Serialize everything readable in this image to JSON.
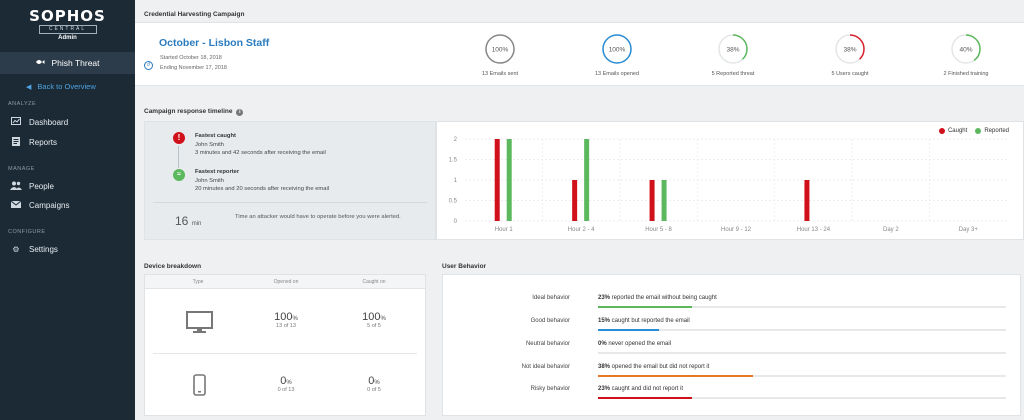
{
  "sidebar": {
    "brand": "SOPHOS",
    "brand_sub": "CENTRAL",
    "brand_role": "Admin",
    "product": "Phish Threat",
    "back_link": "Back to Overview",
    "sections": [
      {
        "label": "ANALYZE",
        "items": [
          {
            "label": "Dashboard",
            "icon": "dashboard-icon"
          },
          {
            "label": "Reports",
            "icon": "reports-icon"
          }
        ]
      },
      {
        "label": "MANAGE",
        "items": [
          {
            "label": "People",
            "icon": "people-icon"
          },
          {
            "label": "Campaigns",
            "icon": "envelope-icon"
          }
        ]
      },
      {
        "label": "CONFIGURE",
        "items": [
          {
            "label": "Settings",
            "icon": "gear-icon"
          }
        ]
      }
    ]
  },
  "campaign": {
    "section_title": "Credential Harvesting Campaign",
    "name": "October - Lisbon Staff",
    "started": "Started October 18, 2018",
    "ending": "Ending November 17, 2018",
    "stats": [
      {
        "value": "100%",
        "fraction": 1.0,
        "color": "#888888",
        "label": "13 Emails sent"
      },
      {
        "value": "100%",
        "fraction": 1.0,
        "color": "#2a8dd4",
        "label": "13 Emails opened"
      },
      {
        "value": "38%",
        "fraction": 0.38,
        "color": "#5cb85c",
        "label": "5 Reported threat"
      },
      {
        "value": "38%",
        "fraction": 0.38,
        "color": "#d9202a",
        "label": "5 Users caught"
      },
      {
        "value": "40%",
        "fraction": 0.4,
        "color": "#5cb85c",
        "label": "2 Finished training"
      }
    ]
  },
  "timeline": {
    "section_title": "Campaign response timeline",
    "fastest_caught": {
      "title": "Fastest caught",
      "name": "John Smith",
      "detail": "3 minutes and 42 seconds after receiving the email"
    },
    "fastest_reporter": {
      "title": "Fastest reporter",
      "name": "John Smith",
      "detail": "20 minutes and 20 seconds after receiving the email"
    },
    "minutes": "16",
    "minutes_unit": "min",
    "minutes_text": "Time an attacker would have to operate before you were alerted."
  },
  "chart_data": {
    "type": "bar",
    "categories": [
      "Hour 1",
      "Hour 2 - 4",
      "Hour 5 - 8",
      "Hour 9 - 12",
      "Hour 13 - 24",
      "Day 2",
      "Day 3+"
    ],
    "series": [
      {
        "name": "Caught",
        "color": "#d0111b",
        "values": [
          2,
          1,
          1,
          0,
          1,
          0,
          0
        ]
      },
      {
        "name": "Reported",
        "color": "#5cb85c",
        "values": [
          2,
          2,
          1,
          0,
          0,
          0,
          0
        ]
      }
    ],
    "yticks": [
      "0",
      "0.5",
      "1",
      "1.5",
      "2"
    ],
    "ylim": [
      0,
      2
    ],
    "legend": "top-right",
    "grid": true
  },
  "devices": {
    "section_title": "Device breakdown",
    "headers": [
      "Type",
      "Opened on",
      "Caught on"
    ],
    "rows": [
      {
        "icon": "desktop-icon",
        "opened_pct": "100",
        "opened_sub": "13 of 13",
        "caught_pct": "100",
        "caught_sub": "5 of 5"
      },
      {
        "icon": "mobile-icon",
        "opened_pct": "0",
        "opened_sub": "0 of 13",
        "caught_pct": "0",
        "caught_sub": "0 of 5"
      }
    ],
    "pct_sign": "%"
  },
  "behavior": {
    "section_title": "User Behavior",
    "rows": [
      {
        "label": "Ideal behavior",
        "pct": "23%",
        "text": " reported the email without being caught",
        "fraction": 0.23,
        "color": "#5cb85c"
      },
      {
        "label": "Good behavior",
        "pct": "15%",
        "text": " caught but reported the email",
        "fraction": 0.15,
        "color": "#2a8dd4"
      },
      {
        "label": "Neutral behavior",
        "pct": "0%",
        "text": " never opened the email",
        "fraction": 0.0,
        "color": "#999999"
      },
      {
        "label": "Not ideal behavior",
        "pct": "38%",
        "text": " opened the email but did not report it",
        "fraction": 0.38,
        "color": "#e87722"
      },
      {
        "label": "Risky behavior",
        "pct": "23%",
        "text": " caught and did not report it",
        "fraction": 0.23,
        "color": "#d0111b"
      }
    ]
  }
}
